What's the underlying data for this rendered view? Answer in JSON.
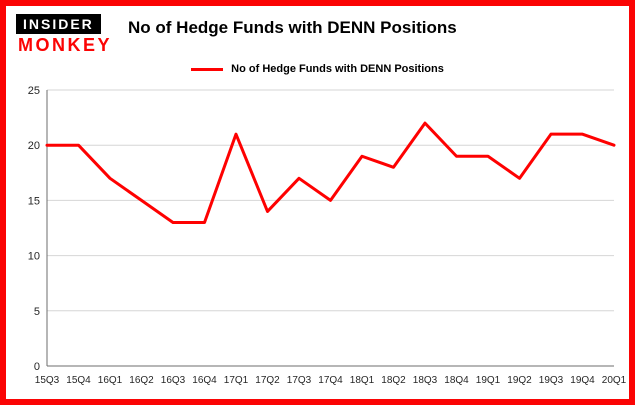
{
  "logo": {
    "line1": "INSIDER",
    "line2": "MONKEY"
  },
  "header": {
    "title": "No of Hedge Funds with DENN Positions"
  },
  "legend": {
    "label": "No of Hedge Funds with DENN Positions"
  },
  "colors": {
    "border_red": "#fb0404",
    "line_red": "#fe0101",
    "grid": "#d6d6d6",
    "axis": "#6e6e6e",
    "text": "#000000",
    "logo_bg": "#000000"
  },
  "chart_data": {
    "type": "line",
    "title": "No of Hedge Funds with DENN Positions",
    "categories": [
      "15Q3",
      "15Q4",
      "16Q1",
      "16Q2",
      "16Q3",
      "16Q4",
      "17Q1",
      "17Q2",
      "17Q3",
      "17Q4",
      "18Q1",
      "18Q2",
      "18Q3",
      "18Q4",
      "19Q1",
      "19Q2",
      "19Q3",
      "19Q4",
      "20Q1"
    ],
    "values": [
      20,
      20,
      17,
      15,
      13,
      13,
      21,
      14,
      17,
      15,
      19,
      18,
      22,
      19,
      19,
      17,
      21,
      21,
      20
    ],
    "xlabel": "",
    "ylabel": "",
    "ylim": [
      0,
      25
    ],
    "yticks": [
      0,
      5,
      10,
      15,
      20,
      25
    ],
    "grid": true,
    "legend_position": "top-center",
    "line_color": "#fe0101"
  }
}
